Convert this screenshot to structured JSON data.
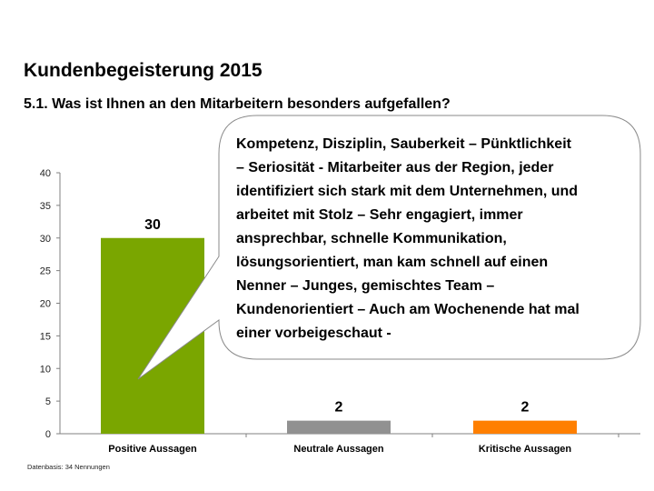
{
  "header": {
    "title": "Kundenbegeisterung 2015",
    "subtitle": "5.1. Was ist Ihnen an den Mitarbeitern besonders aufgefallen?"
  },
  "callout": {
    "lines": [
      "Kompetenz, Disziplin, Sauberkeit – Pünktlichkeit",
      "– Seriosität - Mitarbeiter aus der Region, jeder",
      "identifiziert sich stark mit dem Unternehmen, und",
      "arbeitet mit Stolz – Sehr engagiert, immer",
      "ansprechbar, schnelle Kommunikation,",
      "lösungsorientiert, man kam schnell auf einen",
      "Nenner – Junges, gemischtes Team –",
      "Kundenorientiert – Auch am Wochenende hat mal",
      "einer vorbeigeschaut -"
    ]
  },
  "footnote": "Datenbasis: 34 Nennungen",
  "chart_data": {
    "type": "bar",
    "title": "Kundenbegeisterung 2015",
    "subtitle": "5.1. Was ist Ihnen an den Mitarbeitern besonders aufgefallen?",
    "categories": [
      "Positive Aussagen",
      "Neutrale Aussagen",
      "Kritische Aussagen"
    ],
    "values": [
      30,
      2,
      2
    ],
    "data_labels": [
      "30",
      "2",
      "2"
    ],
    "colors": [
      "#7aa600",
      "#919191",
      "#ff7f00"
    ],
    "xlabel": "",
    "ylabel": "",
    "ylim": [
      0,
      40
    ],
    "yticks": [
      0,
      5,
      10,
      15,
      20,
      25,
      30,
      35,
      40
    ],
    "grid": false,
    "legend": "none"
  }
}
